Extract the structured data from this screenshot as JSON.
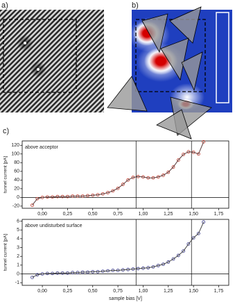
{
  "panels": {
    "a": "a)",
    "b": "b)",
    "c": "c)"
  },
  "chart_data": [
    {
      "type": "scatter",
      "annotation": "above acceptor",
      "ylabel": "tunnel current [pA]",
      "color": "#c0392b",
      "fit_color": "#5a3a3a",
      "x": [
        -0.1,
        -0.05,
        0,
        0.05,
        0.1,
        0.15,
        0.2,
        0.25,
        0.3,
        0.35,
        0.4,
        0.45,
        0.5,
        0.55,
        0.6,
        0.65,
        0.7,
        0.75,
        0.8,
        0.85,
        0.9,
        0.95,
        1.0,
        1.05,
        1.1,
        1.15,
        1.2,
        1.25,
        1.3,
        1.35,
        1.4,
        1.45,
        1.5,
        1.55,
        1.6
      ],
      "values": [
        -18,
        -3,
        0,
        1,
        1,
        2,
        2,
        2,
        3,
        3,
        3,
        4,
        5,
        6,
        8,
        11,
        15,
        21,
        30,
        40,
        46,
        48,
        47,
        45,
        45,
        47,
        51,
        58,
        70,
        86,
        99,
        105,
        104,
        100,
        128
      ],
      "xlim": [
        -0.2,
        1.85
      ],
      "ylim": [
        -25,
        130
      ],
      "xticks": [
        {
          "value": 0,
          "label": "0,00"
        },
        {
          "value": 0.25,
          "label": "0,25"
        },
        {
          "value": 0.5,
          "label": "0,50"
        },
        {
          "value": 0.75,
          "label": "0,75"
        },
        {
          "value": 1,
          "label": "1,00"
        },
        {
          "value": 1.25,
          "label": "1,25"
        },
        {
          "value": 1.5,
          "label": "1,50"
        },
        {
          "value": 1.75,
          "label": "1,75"
        }
      ],
      "yticks": [
        -20,
        0,
        20,
        40,
        60,
        80,
        100,
        120
      ],
      "vlines": [
        0.93,
        1.48
      ]
    },
    {
      "type": "scatter",
      "annotation": "above undisturbed surface",
      "ylabel": "tunnel current [pA]",
      "xlabel": "sample bias [V]",
      "color": "#3a3a8c",
      "fit_color": "#444444",
      "x": [
        -0.1,
        -0.05,
        0,
        0.05,
        0.1,
        0.15,
        0.2,
        0.25,
        0.3,
        0.35,
        0.4,
        0.45,
        0.5,
        0.55,
        0.6,
        0.65,
        0.7,
        0.75,
        0.8,
        0.85,
        0.9,
        0.95,
        1.0,
        1.05,
        1.1,
        1.15,
        1.2,
        1.25,
        1.3,
        1.35,
        1.4,
        1.45,
        1.5,
        1.55,
        1.6
      ],
      "values": [
        -0.4,
        -0.1,
        0,
        0.05,
        0.05,
        0.1,
        0.1,
        0.1,
        0.15,
        0.15,
        0.2,
        0.2,
        0.25,
        0.25,
        0.3,
        0.35,
        0.4,
        0.4,
        0.45,
        0.5,
        0.55,
        0.6,
        0.65,
        0.7,
        0.8,
        0.95,
        1.1,
        1.35,
        1.7,
        2.1,
        2.6,
        3.4,
        4.1,
        4.6,
        5.9
      ],
      "xlim": [
        -0.2,
        1.85
      ],
      "ylim": [
        -1.3,
        6.2
      ],
      "xticks": [
        {
          "value": 0,
          "label": "0,00"
        },
        {
          "value": 0.25,
          "label": "0,25"
        },
        {
          "value": 0.5,
          "label": "0,50"
        },
        {
          "value": 0.75,
          "label": "0,75"
        },
        {
          "value": 1,
          "label": "1,00"
        },
        {
          "value": 1.25,
          "label": "1,25"
        },
        {
          "value": 1.5,
          "label": "1,50"
        },
        {
          "value": 1.75,
          "label": "1,75"
        }
      ],
      "yticks": [
        -1,
        0,
        1,
        2,
        3,
        4,
        5,
        6
      ],
      "vlines": [
        0.93,
        1.48
      ]
    }
  ]
}
